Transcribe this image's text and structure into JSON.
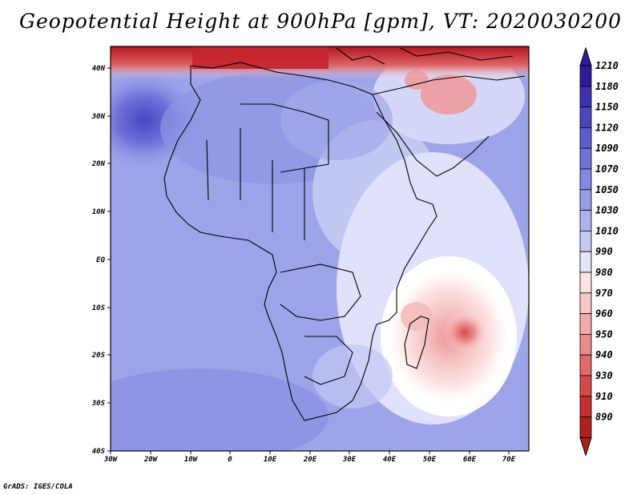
{
  "title": "Geopotential Height at 900hPa [gpm], VT: 2020030200",
  "footer": "GrADS: IGES/COLA",
  "map": {
    "region": "Africa",
    "field": "900hPa geopotential height",
    "lon_range": [
      -30,
      75
    ],
    "lat_range": [
      -40,
      45
    ],
    "lon_ticks": [
      "30W",
      "20W",
      "10W",
      "0",
      "10E",
      "20E",
      "30E",
      "40E",
      "50E",
      "60E",
      "70E"
    ],
    "lat_ticks": [
      "40N",
      "30N",
      "20N",
      "10N",
      "EQ",
      "10S",
      "20S",
      "30S",
      "40S"
    ]
  },
  "colorbar": {
    "levels": [
      "1210",
      "1180",
      "1150",
      "1120",
      "1090",
      "1070",
      "1050",
      "1030",
      "1010",
      "990",
      "980",
      "970",
      "960",
      "950",
      "940",
      "930",
      "910",
      "890"
    ],
    "colors": [
      "#2e1a9e",
      "#3b2fb4",
      "#4b45c6",
      "#5c5dd2",
      "#6e73dc",
      "#8289e2",
      "#979ee9",
      "#adb3ef",
      "#c5c9f5",
      "#e3e6fb",
      "#fde4e4",
      "#f8c9c9",
      "#f2aaaa",
      "#ec8a8a",
      "#e46a6a",
      "#d94848",
      "#c92d2d",
      "#b51c1c"
    ]
  }
}
